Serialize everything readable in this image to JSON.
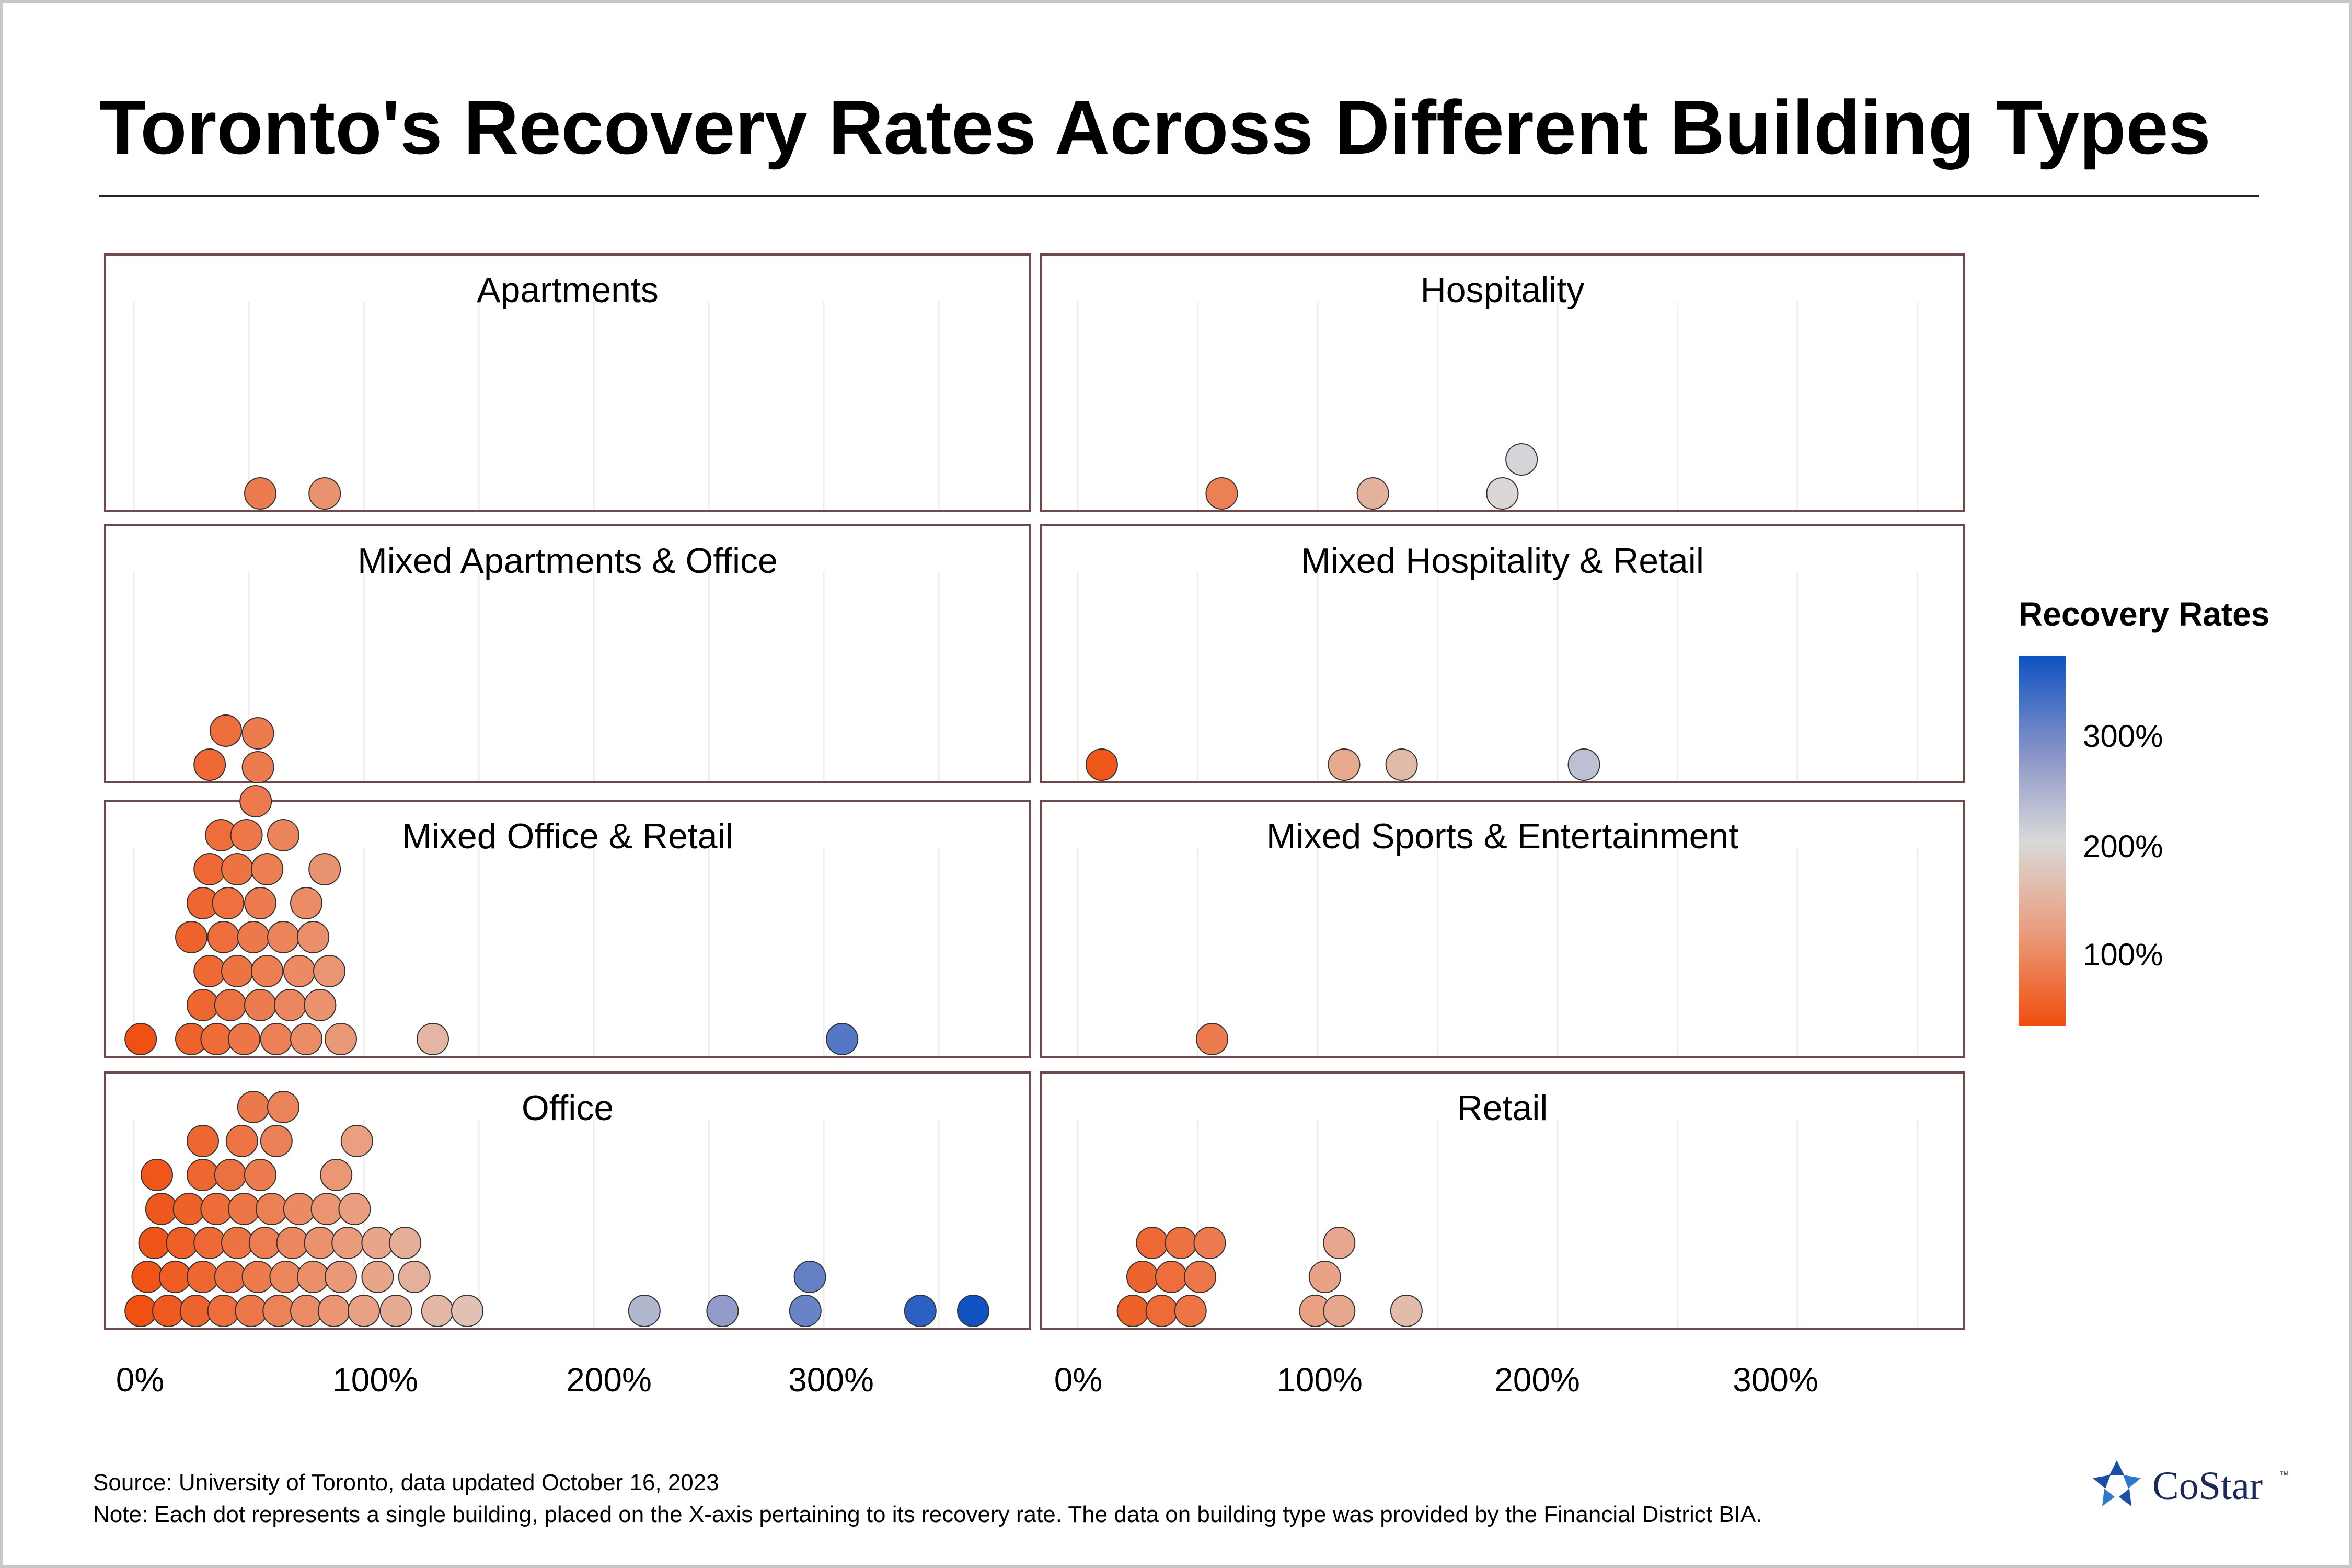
{
  "title": "Toronto's Recovery Rates Across Different Building Types",
  "legend": {
    "title": "Recovery Rates",
    "ticks": [
      "300%",
      "200%",
      "100%"
    ]
  },
  "footer": {
    "source": "Source: University of Toronto, data updated October 16, 2023",
    "note": "Note: Each dot represents a single building, placed on the X-axis pertaining to its recovery rate. The data on building type was provided by the Financial District BIA."
  },
  "logo": {
    "name": "CoStar",
    "tm": "™"
  },
  "colors": {
    "low": "#f04e0e",
    "mid_low": "#e9a184",
    "mid": "#d9d9d9",
    "mid_high": "#8e98c8",
    "high": "#1052c2",
    "panel_border": "#6e4a4a"
  },
  "chart_data": {
    "type": "scatter",
    "subtype": "dot plot (beeswarm), small multiples",
    "x_unit": "%",
    "x_ticks_left": [
      "0%",
      "100%",
      "200%",
      "300%"
    ],
    "x_ticks_right": [
      "0%",
      "100%",
      "200%",
      "300%"
    ],
    "color_scale": {
      "variable": "recovery rate",
      "ticks": [
        100,
        200,
        300
      ]
    },
    "panels": [
      {
        "name": "Apartments",
        "values": [
          55,
          83
        ]
      },
      {
        "name": "Hospitality",
        "values": [
          60,
          123,
          177,
          185
        ]
      },
      {
        "name": "Mixed Apartments & Office",
        "values": [
          33,
          40
        ]
      },
      {
        "name": "Mixed Hospitality & Retail",
        "values": [
          10,
          111,
          135,
          211
        ]
      },
      {
        "name": "Mixed Office & Retail",
        "values": [
          3,
          25,
          30,
          33,
          36,
          39,
          42,
          45,
          48,
          52,
          55,
          58,
          62,
          65,
          68,
          72,
          75,
          78,
          81,
          85,
          90,
          130,
          308,
          25,
          30,
          33,
          38,
          41,
          45,
          49,
          55,
          58,
          65,
          75,
          83,
          53,
          54,
          54
        ]
      },
      {
        "name": "Mixed Sports & Entertainment",
        "values": [
          56
        ]
      },
      {
        "name": "Office",
        "values": [
          3,
          6,
          9,
          12,
          15,
          18,
          21,
          24,
          27,
          30,
          33,
          36,
          39,
          42,
          45,
          48,
          51,
          54,
          57,
          60,
          63,
          66,
          69,
          72,
          75,
          78,
          81,
          84,
          87,
          90,
          93,
          96,
          100,
          106,
          114,
          122,
          132,
          145,
          222,
          256,
          292,
          294,
          342,
          365,
          10,
          30,
          42,
          47,
          52,
          55,
          62,
          88,
          97,
          106,
          118,
          30,
          65
        ]
      },
      {
        "name": "Retail",
        "values": [
          23,
          27,
          31,
          35,
          39,
          43,
          47,
          51,
          55,
          99,
          103,
          109,
          137,
          109
        ]
      }
    ]
  }
}
